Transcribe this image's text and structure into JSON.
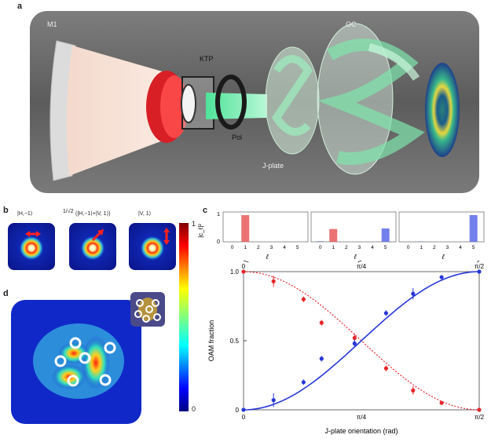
{
  "panels": {
    "a": {
      "label": "a",
      "components": {
        "m1": "M1",
        "ktp": "KTP",
        "pol": "Pol",
        "jplate": "J-plate",
        "oc": "OC"
      }
    },
    "b": {
      "label": "b",
      "states": [
        {
          "label": "|H,−1⟩"
        },
        {
          "label": "(|H,−1⟩+|V, 1⟩)",
          "prefix": "1/√2"
        },
        {
          "label": "|V, 1⟩"
        }
      ],
      "colorbar": {
        "max": "1",
        "min": "0"
      }
    },
    "c": {
      "label": "c"
    },
    "d": {
      "label": "d"
    }
  },
  "colors": {
    "red_series": "#e8262b",
    "blue_series": "#2636d6"
  },
  "chart_data": [
    {
      "type": "bar",
      "ylabel": "|c_ℓ|²",
      "ylim": [
        0,
        1
      ],
      "yticks": [
        "0",
        "1"
      ],
      "xlabel": "ℓ",
      "subplots": [
        {
          "categories": [
            "0",
            "1",
            "2",
            "3",
            "4",
            "5"
          ],
          "values": [
            0,
            1.0,
            0,
            0,
            0,
            0
          ],
          "colors": [
            "#e85a5a",
            "#e85a5a",
            "#e85a5a",
            "#e85a5a",
            "#e85a5a",
            "#e85a5a"
          ]
        },
        {
          "categories": [
            "0",
            "1",
            "2",
            "3",
            "4",
            "5"
          ],
          "values": [
            0.02,
            0.48,
            0,
            0,
            0,
            0.5
          ],
          "colors": [
            "#5a6ae8",
            "#e85a5a",
            "#e85a5a",
            "#e85a5a",
            "#e85a5a",
            "#5a6ae8"
          ]
        },
        {
          "categories": [
            "0",
            "1",
            "2",
            "3",
            "4",
            "5"
          ],
          "values": [
            0,
            0.01,
            0,
            0,
            0,
            1.0
          ],
          "colors": [
            "#5a6ae8",
            "#5a6ae8",
            "#5a6ae8",
            "#5a6ae8",
            "#5a6ae8",
            "#5a6ae8"
          ]
        }
      ]
    },
    {
      "type": "line",
      "xlabel": "J-plate orientation (rad)",
      "ylabel": "OAM fraction",
      "xlim": [
        0,
        1.5708
      ],
      "ylim": [
        0,
        1
      ],
      "yticks": [
        "0",
        "0.5",
        "1.0"
      ],
      "xticks": [
        {
          "value": 0,
          "label": "0"
        },
        {
          "value": 0.7854,
          "label": "π/4"
        },
        {
          "value": 1.5708,
          "label": "π/2"
        }
      ],
      "top_ticks": [
        {
          "value": 0,
          "label": "0"
        },
        {
          "value": 0.7854,
          "label": "π/4"
        },
        {
          "value": 1.5708,
          "label": "π/2"
        }
      ],
      "series": [
        {
          "color": "#e8262b",
          "style": "dotted",
          "points": [
            {
              "x": 0,
              "y": 1.0,
              "err": 0.01
            },
            {
              "x": 0.2,
              "y": 0.93,
              "err": 0.04
            },
            {
              "x": 0.4,
              "y": 0.8,
              "err": 0.02
            },
            {
              "x": 0.52,
              "y": 0.63,
              "err": 0.02
            },
            {
              "x": 0.74,
              "y": 0.52,
              "err": 0.03
            },
            {
              "x": 0.95,
              "y": 0.3,
              "err": 0.02
            },
            {
              "x": 1.13,
              "y": 0.14,
              "err": 0.03
            },
            {
              "x": 1.32,
              "y": 0.05,
              "err": 0.01
            },
            {
              "x": 1.5708,
              "y": 0.0,
              "err": 0.01
            }
          ]
        },
        {
          "color": "#2636d6",
          "style": "solid",
          "points": [
            {
              "x": 0,
              "y": 0.0,
              "err": 0.01
            },
            {
              "x": 0.2,
              "y": 0.07,
              "err": 0.05
            },
            {
              "x": 0.4,
              "y": 0.2,
              "err": 0.02
            },
            {
              "x": 0.52,
              "y": 0.37,
              "err": 0.02
            },
            {
              "x": 0.74,
              "y": 0.48,
              "err": 0.03
            },
            {
              "x": 0.95,
              "y": 0.7,
              "err": 0.02
            },
            {
              "x": 1.13,
              "y": 0.84,
              "err": 0.04
            },
            {
              "x": 1.32,
              "y": 0.96,
              "err": 0.01
            },
            {
              "x": 1.5708,
              "y": 1.0,
              "err": 0.01
            }
          ]
        }
      ]
    }
  ]
}
